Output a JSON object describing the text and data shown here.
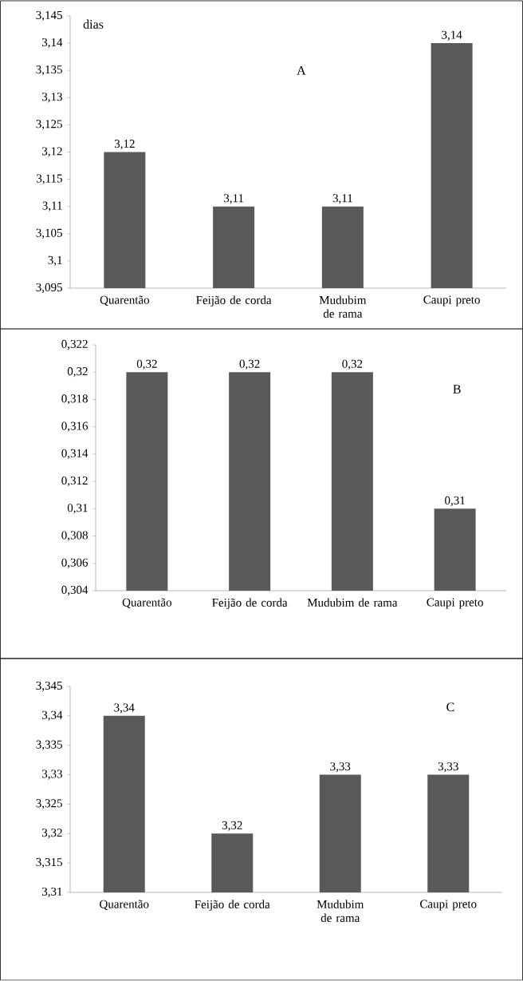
{
  "chart_data": [
    {
      "type": "bar",
      "categories": [
        "Quarentão",
        "Feijão de corda",
        "Mudubim de rama",
        "Caupi preto"
      ],
      "values": [
        3.12,
        3.11,
        3.11,
        3.14
      ],
      "value_labels": [
        "3,12",
        "3,11",
        "3,11",
        "3,14"
      ],
      "color": "#595959",
      "ylim": [
        3.095,
        3.145
      ],
      "yticks": [
        {
          "value": 3.095,
          "label": "3,095"
        },
        {
          "value": 3.1,
          "label": "3,1"
        },
        {
          "value": 3.105,
          "label": "3,105"
        },
        {
          "value": 3.11,
          "label": "3,11"
        },
        {
          "value": 3.115,
          "label": "3,115"
        },
        {
          "value": 3.12,
          "label": "3,12"
        },
        {
          "value": 3.125,
          "label": "3,125"
        },
        {
          "value": 3.13,
          "label": "3,13"
        },
        {
          "value": 3.135,
          "label": "3,135"
        },
        {
          "value": 3.14,
          "label": "3,14"
        },
        {
          "value": 3.145,
          "label": "3,145"
        }
      ],
      "annotations": [
        "dias",
        "A"
      ]
    },
    {
      "type": "bar",
      "categories": [
        "Quarentão",
        "Feijão de corda",
        "Mudubim de rama",
        "Caupi preto"
      ],
      "values": [
        0.32,
        0.32,
        0.32,
        0.31
      ],
      "value_labels": [
        "0,32",
        "0,32",
        "0,32",
        "0,31"
      ],
      "color": "#595959",
      "ylim": [
        0.304,
        0.322
      ],
      "yticks": [
        {
          "value": 0.304,
          "label": "0,304"
        },
        {
          "value": 0.306,
          "label": "0,306"
        },
        {
          "value": 0.308,
          "label": "0,308"
        },
        {
          "value": 0.31,
          "label": "0,31"
        },
        {
          "value": 0.312,
          "label": "0,312"
        },
        {
          "value": 0.314,
          "label": "0,314"
        },
        {
          "value": 0.316,
          "label": "0,316"
        },
        {
          "value": 0.318,
          "label": "0,318"
        },
        {
          "value": 0.32,
          "label": "0,32"
        },
        {
          "value": 0.322,
          "label": "0,322"
        }
      ],
      "annotations": [
        "B"
      ]
    },
    {
      "type": "bar",
      "categories": [
        "Quarentão",
        "Feijão de corda",
        "Mudubim de rama",
        "Caupi preto"
      ],
      "values": [
        3.34,
        3.32,
        3.33,
        3.33
      ],
      "value_labels": [
        "3,34",
        "3,32",
        "3,33",
        "3,33"
      ],
      "color": "#595959",
      "ylim": [
        3.31,
        3.345
      ],
      "yticks": [
        {
          "value": 3.31,
          "label": "3,31"
        },
        {
          "value": 3.315,
          "label": "3,315"
        },
        {
          "value": 3.32,
          "label": "3,32"
        },
        {
          "value": 3.325,
          "label": "3,325"
        },
        {
          "value": 3.33,
          "label": "3,33"
        },
        {
          "value": 3.335,
          "label": "3,335"
        },
        {
          "value": 3.34,
          "label": "3,34"
        },
        {
          "value": 3.345,
          "label": "3,345"
        }
      ],
      "annotations": [
        "C"
      ]
    }
  ]
}
